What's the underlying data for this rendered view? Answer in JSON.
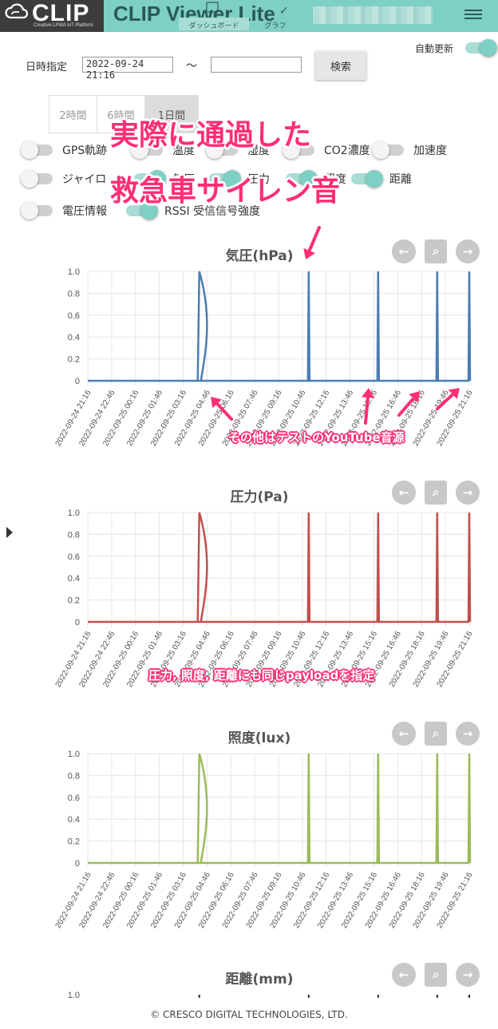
{
  "header": {
    "logo_text": "CLIP",
    "logo_sub": "Creative LPWA IoT Platform",
    "title": "CLIP Viewer Lite",
    "tab_dashboard": "ダッシュボード",
    "tab_graph": "グラフ"
  },
  "controls": {
    "auto_update_label": "自動更新",
    "date_label": "日時指定",
    "date_from": "2022-09-24 21:16",
    "date_to": "",
    "tilde": "〜",
    "search_label": "検索",
    "range_buttons": [
      "2時間",
      "6時間",
      "1日間"
    ]
  },
  "sensors": [
    {
      "label": "GPS軌跡",
      "on": false
    },
    {
      "label": "温度",
      "on": false
    },
    {
      "label": "湿度",
      "on": false
    },
    {
      "label": "CO2濃度",
      "on": false
    },
    {
      "label": "加速度",
      "on": false
    },
    {
      "label": "ジャイロ",
      "on": false
    },
    {
      "label": "気圧",
      "on": true
    },
    {
      "label": "圧力",
      "on": true
    },
    {
      "label": "照度",
      "on": true
    },
    {
      "label": "距離",
      "on": true
    },
    {
      "label": "電圧情報",
      "on": false
    },
    {
      "label": "RSSI 受信信号強度",
      "on": true
    }
  ],
  "annotations": {
    "line1": "実際に通過した",
    "line2": "救急車サイレン音",
    "youtube": "その他はテストのYouTube音源",
    "payload": "圧力, 照度, 距離にも同じpayloadを指定"
  },
  "chart_data": [
    {
      "type": "line",
      "title": "気圧(hPa)",
      "color": "#4a7db3",
      "ylim": [
        0,
        1.0
      ],
      "yticks": [
        "1.0",
        "0.8",
        "0.6",
        "0.4",
        "0.2",
        "0"
      ],
      "xticks": [
        "2022-09-24 21:16",
        "2022-09-24 22:46",
        "2022-09-25 00:16",
        "2022-09-25 01:46",
        "2022-09-25 03:16",
        "2022-09-25 04:46",
        "2022-09-25 06:16",
        "2022-09-25 07:46",
        "2022-09-25 09:16",
        "2022-09-25 10:46",
        "2022-09-25 12:16",
        "2022-09-25 13:46",
        "2022-09-25 15:16",
        "2022-09-25 16:46",
        "2022-09-25 18:16",
        "2022-09-25 19:46",
        "2022-09-25 21:16"
      ],
      "spikes": [
        "2022-09-25 04:17",
        "2022-09-25 11:10",
        "2022-09-25 15:32",
        "2022-09-25 19:15",
        "2022-09-25 21:16"
      ]
    },
    {
      "type": "line",
      "title": "圧力(Pa)",
      "color": "#c0504d",
      "ylim": [
        0,
        1.0
      ],
      "yticks": [
        "1.0",
        "0.8",
        "0.6",
        "0.4",
        "0.2",
        "0"
      ],
      "xticks": [
        "2022-09-24 21:16",
        "2022-09-24 22:46",
        "2022-09-25 00:16",
        "2022-09-25 01:46",
        "2022-09-25 03:16",
        "2022-09-25 04:46",
        "2022-09-25 06:16",
        "2022-09-25 07:46",
        "2022-09-25 09:16",
        "2022-09-25 10:46",
        "2022-09-25 12:16",
        "2022-09-25 13:46",
        "2022-09-25 15:16",
        "2022-09-25 16:46",
        "2022-09-25 18:16",
        "2022-09-25 19:46",
        "2022-09-25 21:16"
      ],
      "spikes": [
        "2022-09-25 04:17",
        "2022-09-25 11:10",
        "2022-09-25 15:32",
        "2022-09-25 19:15",
        "2022-09-25 21:16"
      ]
    },
    {
      "type": "line",
      "title": "照度(lux)",
      "color": "#9bbb59",
      "ylim": [
        0,
        1.0
      ],
      "yticks": [
        "1.0",
        "0.8",
        "0.6",
        "0.4",
        "0.2",
        "0"
      ],
      "xticks": [
        "2022-09-24 21:16",
        "2022-09-24 22:46",
        "2022-09-25 00:16",
        "2022-09-25 01:46",
        "2022-09-25 03:16",
        "2022-09-25 04:46",
        "2022-09-25 06:16",
        "2022-09-25 07:46",
        "2022-09-25 09:16",
        "2022-09-25 10:46",
        "2022-09-25 12:16",
        "2022-09-25 13:46",
        "2022-09-25 15:16",
        "2022-09-25 16:46",
        "2022-09-25 18:16",
        "2022-09-25 19:46",
        "2022-09-25 21:16"
      ],
      "spikes": [
        "2022-09-25 04:17",
        "2022-09-25 11:10",
        "2022-09-25 15:32",
        "2022-09-25 19:15",
        "2022-09-25 21:16"
      ]
    },
    {
      "type": "line",
      "title": "距離(mm)",
      "color": "#333333",
      "ylim": [
        0,
        1.0
      ],
      "yticks": [
        "1.0"
      ],
      "xticks": [],
      "spikes": [
        "2022-09-25 04:17",
        "2022-09-25 11:10",
        "2022-09-25 15:32",
        "2022-09-25 19:15",
        "2022-09-25 21:16"
      ]
    }
  ],
  "chart_buttons": {
    "prev": "←",
    "zoom": "⌕",
    "next": "→"
  },
  "footer": "© CRESCO DIGITAL TECHNOLOGIES, LTD."
}
